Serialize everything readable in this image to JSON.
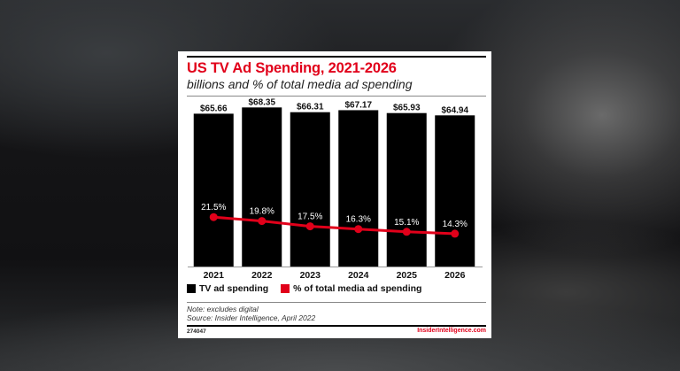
{
  "chart_data": {
    "type": "bar",
    "title": "US TV Ad Spending, 2021-2026",
    "subtitle": "billions and % of total media ad spending",
    "xlabel": "",
    "ylabel": "",
    "categories": [
      "2021",
      "2022",
      "2023",
      "2024",
      "2025",
      "2026"
    ],
    "series": [
      {
        "name": "TV ad spending",
        "type": "bar",
        "color": "#000000",
        "values": [
          65.66,
          68.35,
          66.31,
          67.17,
          65.93,
          64.94
        ],
        "labels": [
          "$65.66",
          "$68.35",
          "$66.31",
          "$67.17",
          "$65.93",
          "$64.94"
        ]
      },
      {
        "name": "% of total media ad spending",
        "type": "line",
        "color": "#e1001a",
        "values": [
          21.5,
          19.8,
          17.5,
          16.3,
          15.1,
          14.3
        ],
        "labels": [
          "21.5%",
          "19.8%",
          "17.5%",
          "16.3%",
          "15.1%",
          "14.3%"
        ]
      }
    ],
    "ylim": [
      0,
      70
    ],
    "y2lim": [
      0,
      100
    ],
    "grid": false,
    "legend": "bottom-left",
    "note": "Note: excludes digital",
    "source": "Source: Insider Intelligence, April 2022",
    "chart_id": "274047",
    "brand": "InsiderIntelligence.com"
  },
  "colors": {
    "accent": "#e1001a",
    "bar": "#000000"
  }
}
